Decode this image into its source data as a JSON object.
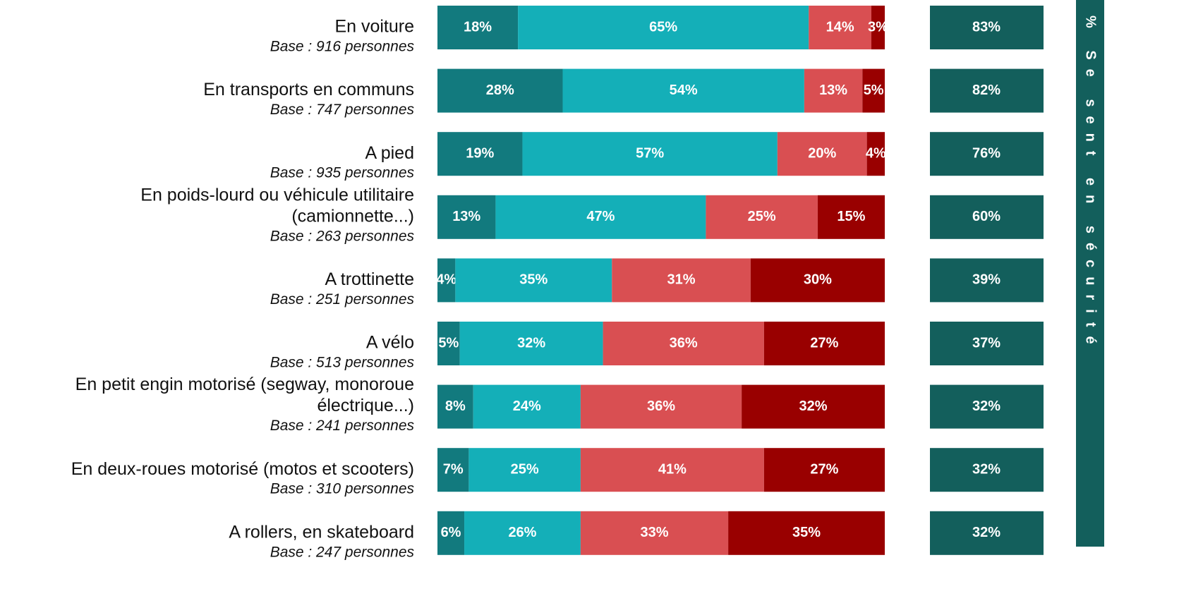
{
  "chart_data": {
    "type": "stacked-bar",
    "categories": [
      [
        "En voiture"
      ],
      [
        "En transports en communs"
      ],
      [
        "A pied"
      ],
      [
        "En poids-lourd ou véhicule utilitaire",
        "(camionnette...)"
      ],
      [
        "A trottinette"
      ],
      [
        "A vélo"
      ],
      [
        "En petit engin motorisé (segway, monoroue",
        "électrique...)"
      ],
      [
        "En deux-roues motorisé (motos et scooters)"
      ],
      [
        "A rollers, en skateboard"
      ]
    ],
    "bases": [
      "Base : 916 personnes",
      "Base : 747 personnes",
      "Base : 935 personnes",
      "Base : 263 personnes",
      "Base : 251 personnes",
      "Base : 513 personnes",
      "Base : 241 personnes",
      "Base : 310 personnes",
      "Base : 247 personnes"
    ],
    "series": [
      {
        "color": "#127a7e",
        "values": [
          18,
          28,
          19,
          13,
          4,
          5,
          8,
          7,
          6
        ],
        "value_labels": [
          "18%",
          "28%",
          "19%",
          "13%",
          "4%",
          "5%",
          "8%",
          "7%",
          "6%"
        ]
      },
      {
        "color": "#14afb8",
        "values": [
          65,
          54,
          57,
          47,
          35,
          32,
          24,
          25,
          26
        ],
        "value_labels": [
          "65%",
          "54%",
          "57%",
          "47%",
          "35%",
          "32%",
          "24%",
          "25%",
          "26%"
        ]
      },
      {
        "color": "#d94f52",
        "values": [
          14,
          13,
          20,
          25,
          31,
          36,
          36,
          41,
          33
        ],
        "value_labels": [
          "14%",
          "13%",
          "20%",
          "25%",
          "31%",
          "36%",
          "36%",
          "41%",
          "33%"
        ]
      },
      {
        "color": "#990000",
        "values": [
          3,
          5,
          4,
          15,
          30,
          27,
          32,
          27,
          35
        ],
        "value_labels": [
          "3%",
          "5%",
          "4%",
          "15%",
          "30%",
          "27%",
          "32%",
          "27%",
          "35%"
        ]
      }
    ],
    "totals": {
      "color": "#135f5c",
      "values": [
        83,
        82,
        76,
        60,
        39,
        37,
        32,
        32,
        32
      ],
      "value_labels": [
        "83%",
        "82%",
        "76%",
        "60%",
        "39%",
        "37%",
        "32%",
        "32%",
        "32%"
      ]
    },
    "side_label": "% Se sent en sécurité",
    "xlim": [
      0,
      100
    ]
  }
}
